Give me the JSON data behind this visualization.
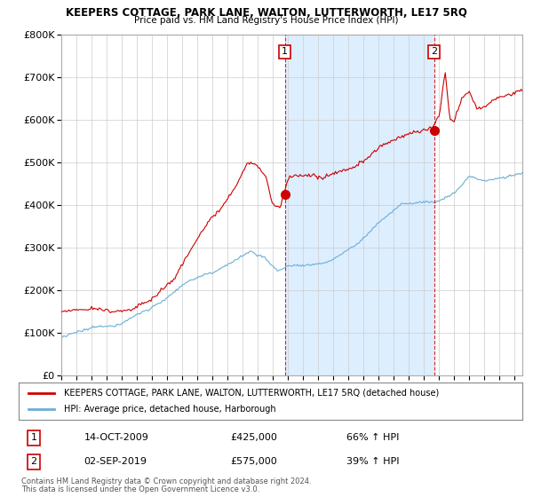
{
  "title": "KEEPERS COTTAGE, PARK LANE, WALTON, LUTTERWORTH, LE17 5RQ",
  "subtitle": "Price paid vs. HM Land Registry's House Price Index (HPI)",
  "legend_property": "KEEPERS COTTAGE, PARK LANE, WALTON, LUTTERWORTH, LE17 5RQ (detached house)",
  "legend_hpi": "HPI: Average price, detached house, Harborough",
  "sale1_label": "1",
  "sale1_date": "14-OCT-2009",
  "sale1_price": "£425,000",
  "sale1_hpi": "66% ↑ HPI",
  "sale1_year": 2009.79,
  "sale1_value": 425000,
  "sale2_label": "2",
  "sale2_date": "02-SEP-2019",
  "sale2_price": "£575,000",
  "sale2_hpi": "39% ↑ HPI",
  "sale2_year": 2019.67,
  "sale2_value": 575000,
  "footer1": "Contains HM Land Registry data © Crown copyright and database right 2024.",
  "footer2": "This data is licensed under the Open Government Licence v3.0.",
  "ylim": [
    0,
    800000
  ],
  "xlim": [
    1995.0,
    2025.5
  ],
  "property_color": "#cc0000",
  "hpi_color": "#6baed6",
  "shade_color": "#ddeeff",
  "dashed_line_color": "#cc0000",
  "marker_box_color": "#cc0000",
  "background_color": "#ffffff",
  "grid_color": "#cccccc"
}
